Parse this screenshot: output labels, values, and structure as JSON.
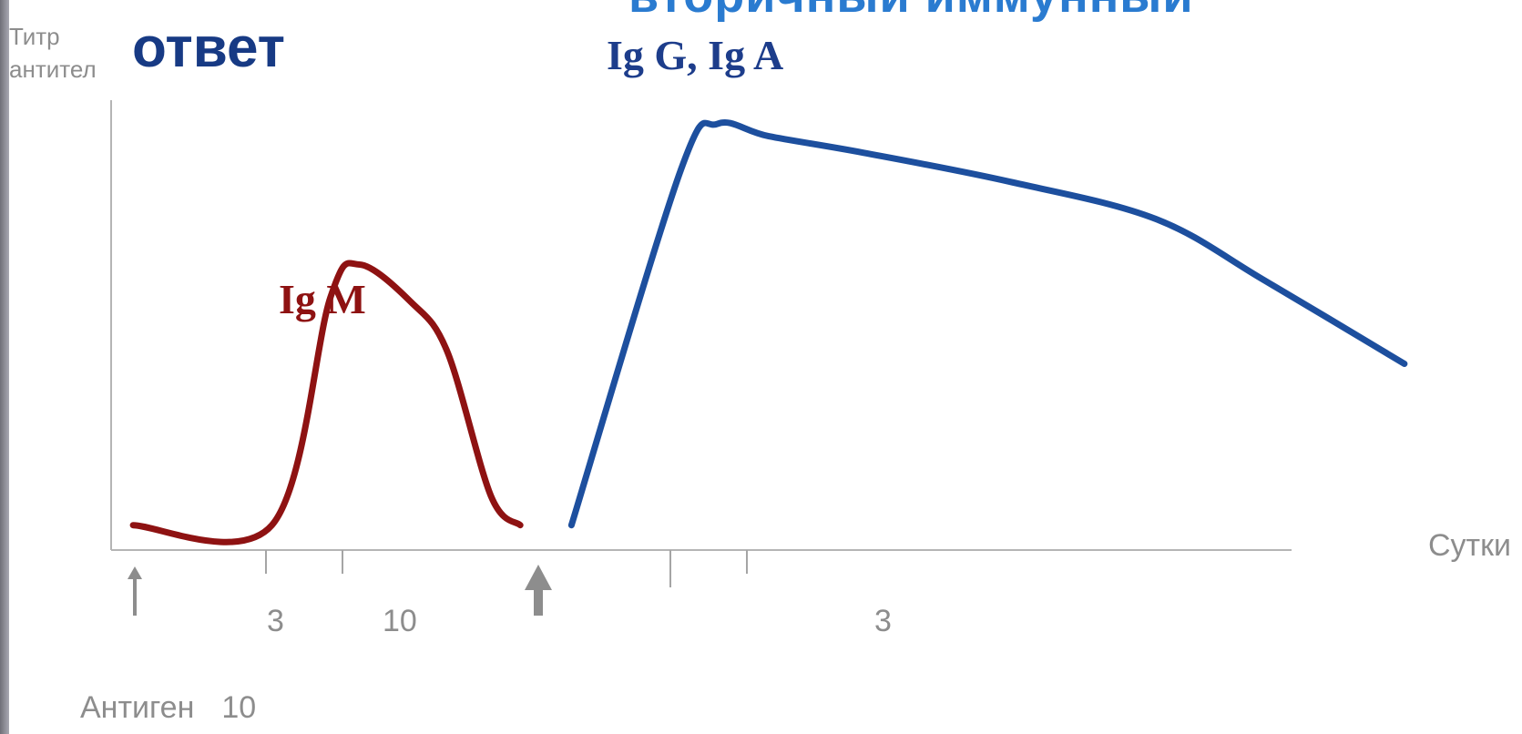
{
  "heading": "ответ",
  "top_cutoff": "вторичный иммунный",
  "chart_data": {
    "type": "line",
    "ylabel_lines": [
      "Титр",
      "антител"
    ],
    "xlabel": "Сутки",
    "x_tick_labels": [
      "3",
      "10",
      "3"
    ],
    "antigen_label": "Антиген",
    "antigen_day": "10",
    "grid": false,
    "colors": {
      "igm": "#8e1212",
      "igga": "#1d4f9e",
      "axis": "#b5b5b5",
      "marker": "#8d8d8d"
    },
    "series": [
      {
        "name": "Ig M",
        "x": [
          0,
          1.9,
          2.7,
          3.1,
          3.8,
          4.3,
          4.9,
          5.3
        ],
        "y": [
          0,
          0,
          0.55,
          0.63,
          0.54,
          0.42,
          0.07,
          0
        ]
      },
      {
        "name": "Ig G, Ig A",
        "x": [
          6.0,
          7.5,
          8.0,
          8.7,
          10,
          12,
          14,
          15.5,
          17.4
        ],
        "y": [
          0,
          0.86,
          0.97,
          0.94,
          0.9,
          0.83,
          0.74,
          0.59,
          0.39
        ]
      }
    ],
    "x_range": [
      -0.3,
      18
    ],
    "y_range": [
      -0.06,
      1.08
    ]
  }
}
